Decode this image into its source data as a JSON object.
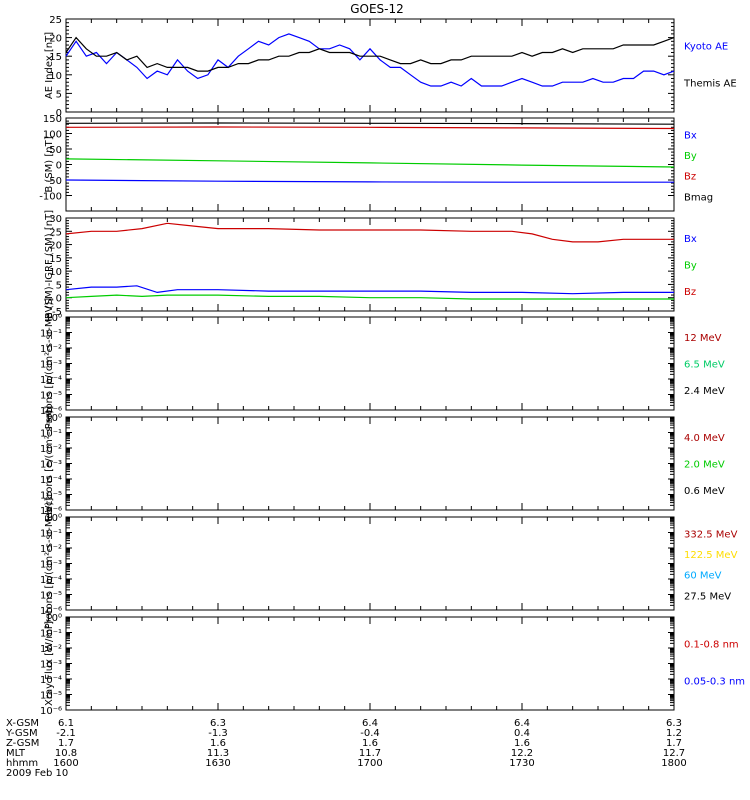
{
  "title": "GOES-12",
  "date_label": "2009 Feb 10",
  "colors": {
    "black": "#000000",
    "blue": "#0000ff",
    "green": "#00cc00",
    "red": "#cc0000",
    "yellow": "#ffdd00",
    "cyan": "#00aaff",
    "darkred": "#aa0000"
  },
  "chart_data": [
    {
      "type": "line",
      "panel": "ae",
      "ylabel": "AE Index [nT]",
      "ylim": [
        0,
        25
      ],
      "yticks": [
        "0",
        "5",
        "10",
        "15",
        "20",
        "25"
      ],
      "legend": [
        {
          "name": "Kyoto AE",
          "color": "#0000ff"
        },
        {
          "name": "Themis AE",
          "color": "#000000"
        }
      ],
      "series": [
        {
          "name": "Kyoto AE",
          "color": "#0000ff",
          "x": [
            1600,
            1602,
            1604,
            1606,
            1608,
            1610,
            1612,
            1614,
            1616,
            1618,
            1620,
            1622,
            1624,
            1626,
            1628,
            1630,
            1632,
            1634,
            1636,
            1638,
            1640,
            1642,
            1644,
            1646,
            1648,
            1650,
            1652,
            1654,
            1656,
            1658,
            1700,
            1702,
            1704,
            1706,
            1708,
            1710,
            1712,
            1714,
            1716,
            1718,
            1720,
            1722,
            1724,
            1726,
            1728,
            1730,
            1732,
            1734,
            1736,
            1738,
            1740,
            1742,
            1744,
            1746,
            1748,
            1750,
            1752,
            1754,
            1756,
            1758,
            1800
          ],
          "y": [
            15,
            19,
            15,
            16,
            13,
            16,
            14,
            12,
            9,
            11,
            10,
            14,
            11,
            9,
            10,
            14,
            12,
            15,
            17,
            19,
            18,
            20,
            21,
            20,
            19,
            17,
            17,
            18,
            17,
            14,
            17,
            14,
            12,
            12,
            10,
            8,
            7,
            7,
            8,
            7,
            9,
            7,
            7,
            7,
            8,
            9,
            8,
            7,
            7,
            8,
            8,
            8,
            9,
            8,
            8,
            9,
            9,
            11,
            11,
            10,
            11
          ]
        },
        {
          "name": "Themis AE",
          "color": "#000000",
          "x": [
            1600,
            1602,
            1604,
            1606,
            1608,
            1610,
            1612,
            1614,
            1616,
            1618,
            1620,
            1622,
            1624,
            1626,
            1628,
            1630,
            1632,
            1634,
            1636,
            1638,
            1640,
            1642,
            1644,
            1646,
            1648,
            1650,
            1652,
            1654,
            1656,
            1658,
            1700,
            1702,
            1704,
            1706,
            1708,
            1710,
            1712,
            1714,
            1716,
            1718,
            1720,
            1722,
            1724,
            1726,
            1728,
            1730,
            1732,
            1734,
            1736,
            1738,
            1740,
            1742,
            1744,
            1746,
            1748,
            1750,
            1752,
            1754,
            1756,
            1758,
            1800
          ],
          "y": [
            16,
            20,
            17,
            15,
            15,
            16,
            14,
            15,
            12,
            13,
            12,
            12,
            12,
            11,
            11,
            12,
            12,
            13,
            13,
            14,
            14,
            15,
            15,
            16,
            16,
            17,
            16,
            16,
            16,
            15,
            15,
            15,
            14,
            13,
            13,
            14,
            13,
            13,
            14,
            14,
            15,
            15,
            15,
            15,
            15,
            16,
            15,
            16,
            16,
            17,
            16,
            17,
            17,
            17,
            17,
            18,
            18,
            18,
            18,
            19,
            20
          ]
        }
      ]
    },
    {
      "type": "line",
      "panel": "b_sm",
      "ylabel": "B (SM) [nT]",
      "ylim": [
        -150,
        150
      ],
      "yticks": [
        "-100",
        "-50",
        "0",
        "50",
        "100",
        "150"
      ],
      "legend": [
        {
          "name": "Bx",
          "color": "#0000ff"
        },
        {
          "name": "By",
          "color": "#00cc00"
        },
        {
          "name": "Bz",
          "color": "#cc0000"
        },
        {
          "name": "Bmag",
          "color": "#000000"
        }
      ],
      "series": [
        {
          "name": "Bmag",
          "color": "#000000",
          "x": [
            1600,
            1630,
            1700,
            1730,
            1800
          ],
          "y": [
            133,
            134,
            133,
            132,
            130
          ]
        },
        {
          "name": "Bz",
          "color": "#cc0000",
          "x": [
            1600,
            1630,
            1700,
            1730,
            1800
          ],
          "y": [
            120,
            121,
            120,
            118,
            116
          ]
        },
        {
          "name": "By",
          "color": "#00cc00",
          "x": [
            1600,
            1630,
            1700,
            1730,
            1800
          ],
          "y": [
            18,
            12,
            5,
            -2,
            -8
          ]
        },
        {
          "name": "Bx",
          "color": "#0000ff",
          "x": [
            1600,
            1630,
            1700,
            1730,
            1800
          ],
          "y": [
            -50,
            -54,
            -56,
            -57,
            -57
          ]
        }
      ]
    },
    {
      "type": "line",
      "panel": "b_igrf",
      "ylabel": "B (SM)-IGRF (SM) [nT]",
      "ylim": [
        -5,
        30
      ],
      "yticks": [
        "-5",
        "0",
        "5",
        "10",
        "15",
        "20",
        "25",
        "30"
      ],
      "legend": [
        {
          "name": "Bx",
          "color": "#0000ff"
        },
        {
          "name": "By",
          "color": "#00cc00"
        },
        {
          "name": "Bz",
          "color": "#cc0000"
        }
      ],
      "series": [
        {
          "name": "Bz",
          "color": "#cc0000",
          "x": [
            1600,
            1605,
            1610,
            1615,
            1620,
            1625,
            1630,
            1640,
            1650,
            1700,
            1710,
            1720,
            1728,
            1732,
            1736,
            1740,
            1745,
            1750,
            1755,
            1800
          ],
          "y": [
            24,
            25,
            25,
            26,
            28,
            27,
            26,
            26,
            25.5,
            25.5,
            25.5,
            25,
            25,
            24,
            22,
            21,
            21,
            22,
            22,
            22
          ]
        },
        {
          "name": "Bx",
          "color": "#0000ff",
          "x": [
            1600,
            1605,
            1610,
            1614,
            1618,
            1622,
            1630,
            1640,
            1650,
            1700,
            1710,
            1720,
            1730,
            1740,
            1750,
            1800
          ],
          "y": [
            3,
            4,
            4,
            4.5,
            2,
            3,
            3,
            2.5,
            2.5,
            2.5,
            2.5,
            2,
            2,
            1.5,
            2,
            2
          ]
        },
        {
          "name": "By",
          "color": "#00cc00",
          "x": [
            1600,
            1605,
            1610,
            1615,
            1620,
            1630,
            1640,
            1650,
            1700,
            1710,
            1720,
            1730,
            1740,
            1750,
            1800
          ],
          "y": [
            0,
            0.5,
            1,
            0.5,
            1,
            1,
            0.5,
            0.5,
            0,
            0,
            -0.5,
            -0.5,
            -0.5,
            -0.5,
            -0.5
          ]
        }
      ]
    },
    {
      "type": "line",
      "panel": "protons_low",
      "ylabel": "Protons [p/(cm²-s-sr-MeV)]",
      "yscale": "log",
      "ylim": [
        1e-06,
        1
      ],
      "yticks": [
        "10⁻⁶",
        "10⁻⁵",
        "10⁻⁴",
        "10⁻³",
        "10⁻²",
        "10⁻¹",
        "10⁰"
      ],
      "legend": [
        {
          "name": "12 MeV",
          "color": "#aa0000"
        },
        {
          "name": "6.5 MeV",
          "color": "#00cc66"
        },
        {
          "name": "2.4 MeV",
          "color": "#000000"
        }
      ],
      "series": []
    },
    {
      "type": "line",
      "panel": "electrons",
      "ylabel": "Electrons [e/(cm²-s-sr)]",
      "yscale": "log",
      "ylim": [
        1e-06,
        1
      ],
      "yticks": [
        "10⁻⁶",
        "10⁻⁵",
        "10⁻⁴",
        "10⁻³",
        "10⁻²",
        "10⁻¹",
        "10⁰"
      ],
      "legend": [
        {
          "name": "4.0 MeV",
          "color": "#aa0000"
        },
        {
          "name": "2.0 MeV",
          "color": "#00cc00"
        },
        {
          "name": "0.6 MeV",
          "color": "#000000"
        }
      ],
      "series": []
    },
    {
      "type": "line",
      "panel": "protons_high",
      "ylabel": "Protons [p/(cm²-s-sr-MeV)]",
      "yscale": "log",
      "ylim": [
        1e-06,
        1
      ],
      "yticks": [
        "10⁻⁶",
        "10⁻⁵",
        "10⁻⁴",
        "10⁻³",
        "10⁻²",
        "10⁻¹",
        "10⁰"
      ],
      "legend": [
        {
          "name": "332.5 MeV",
          "color": "#aa0000"
        },
        {
          "name": "122.5 MeV",
          "color": "#ffdd00"
        },
        {
          "name": "60 MeV",
          "color": "#00aaff"
        },
        {
          "name": "27.5 MeV",
          "color": "#000000"
        }
      ],
      "series": []
    },
    {
      "type": "line",
      "panel": "xray",
      "ylabel": "Xray Flux [W/m²]",
      "yscale": "log",
      "ylim": [
        1e-06,
        1
      ],
      "yticks": [
        "10⁻⁶",
        "10⁻⁵",
        "10⁻⁴",
        "10⁻³",
        "10⁻²",
        "10⁻¹",
        "10⁰"
      ],
      "legend": [
        {
          "name": "0.1-0.8 nm",
          "color": "#cc0000"
        },
        {
          "name": "0.05-0.3 nm",
          "color": "#0000ff"
        }
      ],
      "series": []
    }
  ],
  "x_axis": {
    "xlim": [
      1600,
      1800
    ],
    "tick_values": [
      1600,
      1630,
      1700,
      1730,
      1800
    ],
    "rows": [
      {
        "label": "X-GSM",
        "values": [
          "6.1",
          "6.3",
          "6.4",
          "6.4",
          "6.3"
        ]
      },
      {
        "label": "Y-GSM",
        "values": [
          "-2.1",
          "-1.3",
          "-0.4",
          "0.4",
          "1.2"
        ]
      },
      {
        "label": "Z-GSM",
        "values": [
          "1.7",
          "1.6",
          "1.6",
          "1.6",
          "1.7"
        ]
      },
      {
        "label": "MLT",
        "values": [
          "10.8",
          "11.3",
          "11.7",
          "12.2",
          "12.7"
        ]
      },
      {
        "label": "hhmm",
        "values": [
          "1600",
          "1630",
          "1700",
          "1730",
          "1800"
        ]
      }
    ]
  }
}
